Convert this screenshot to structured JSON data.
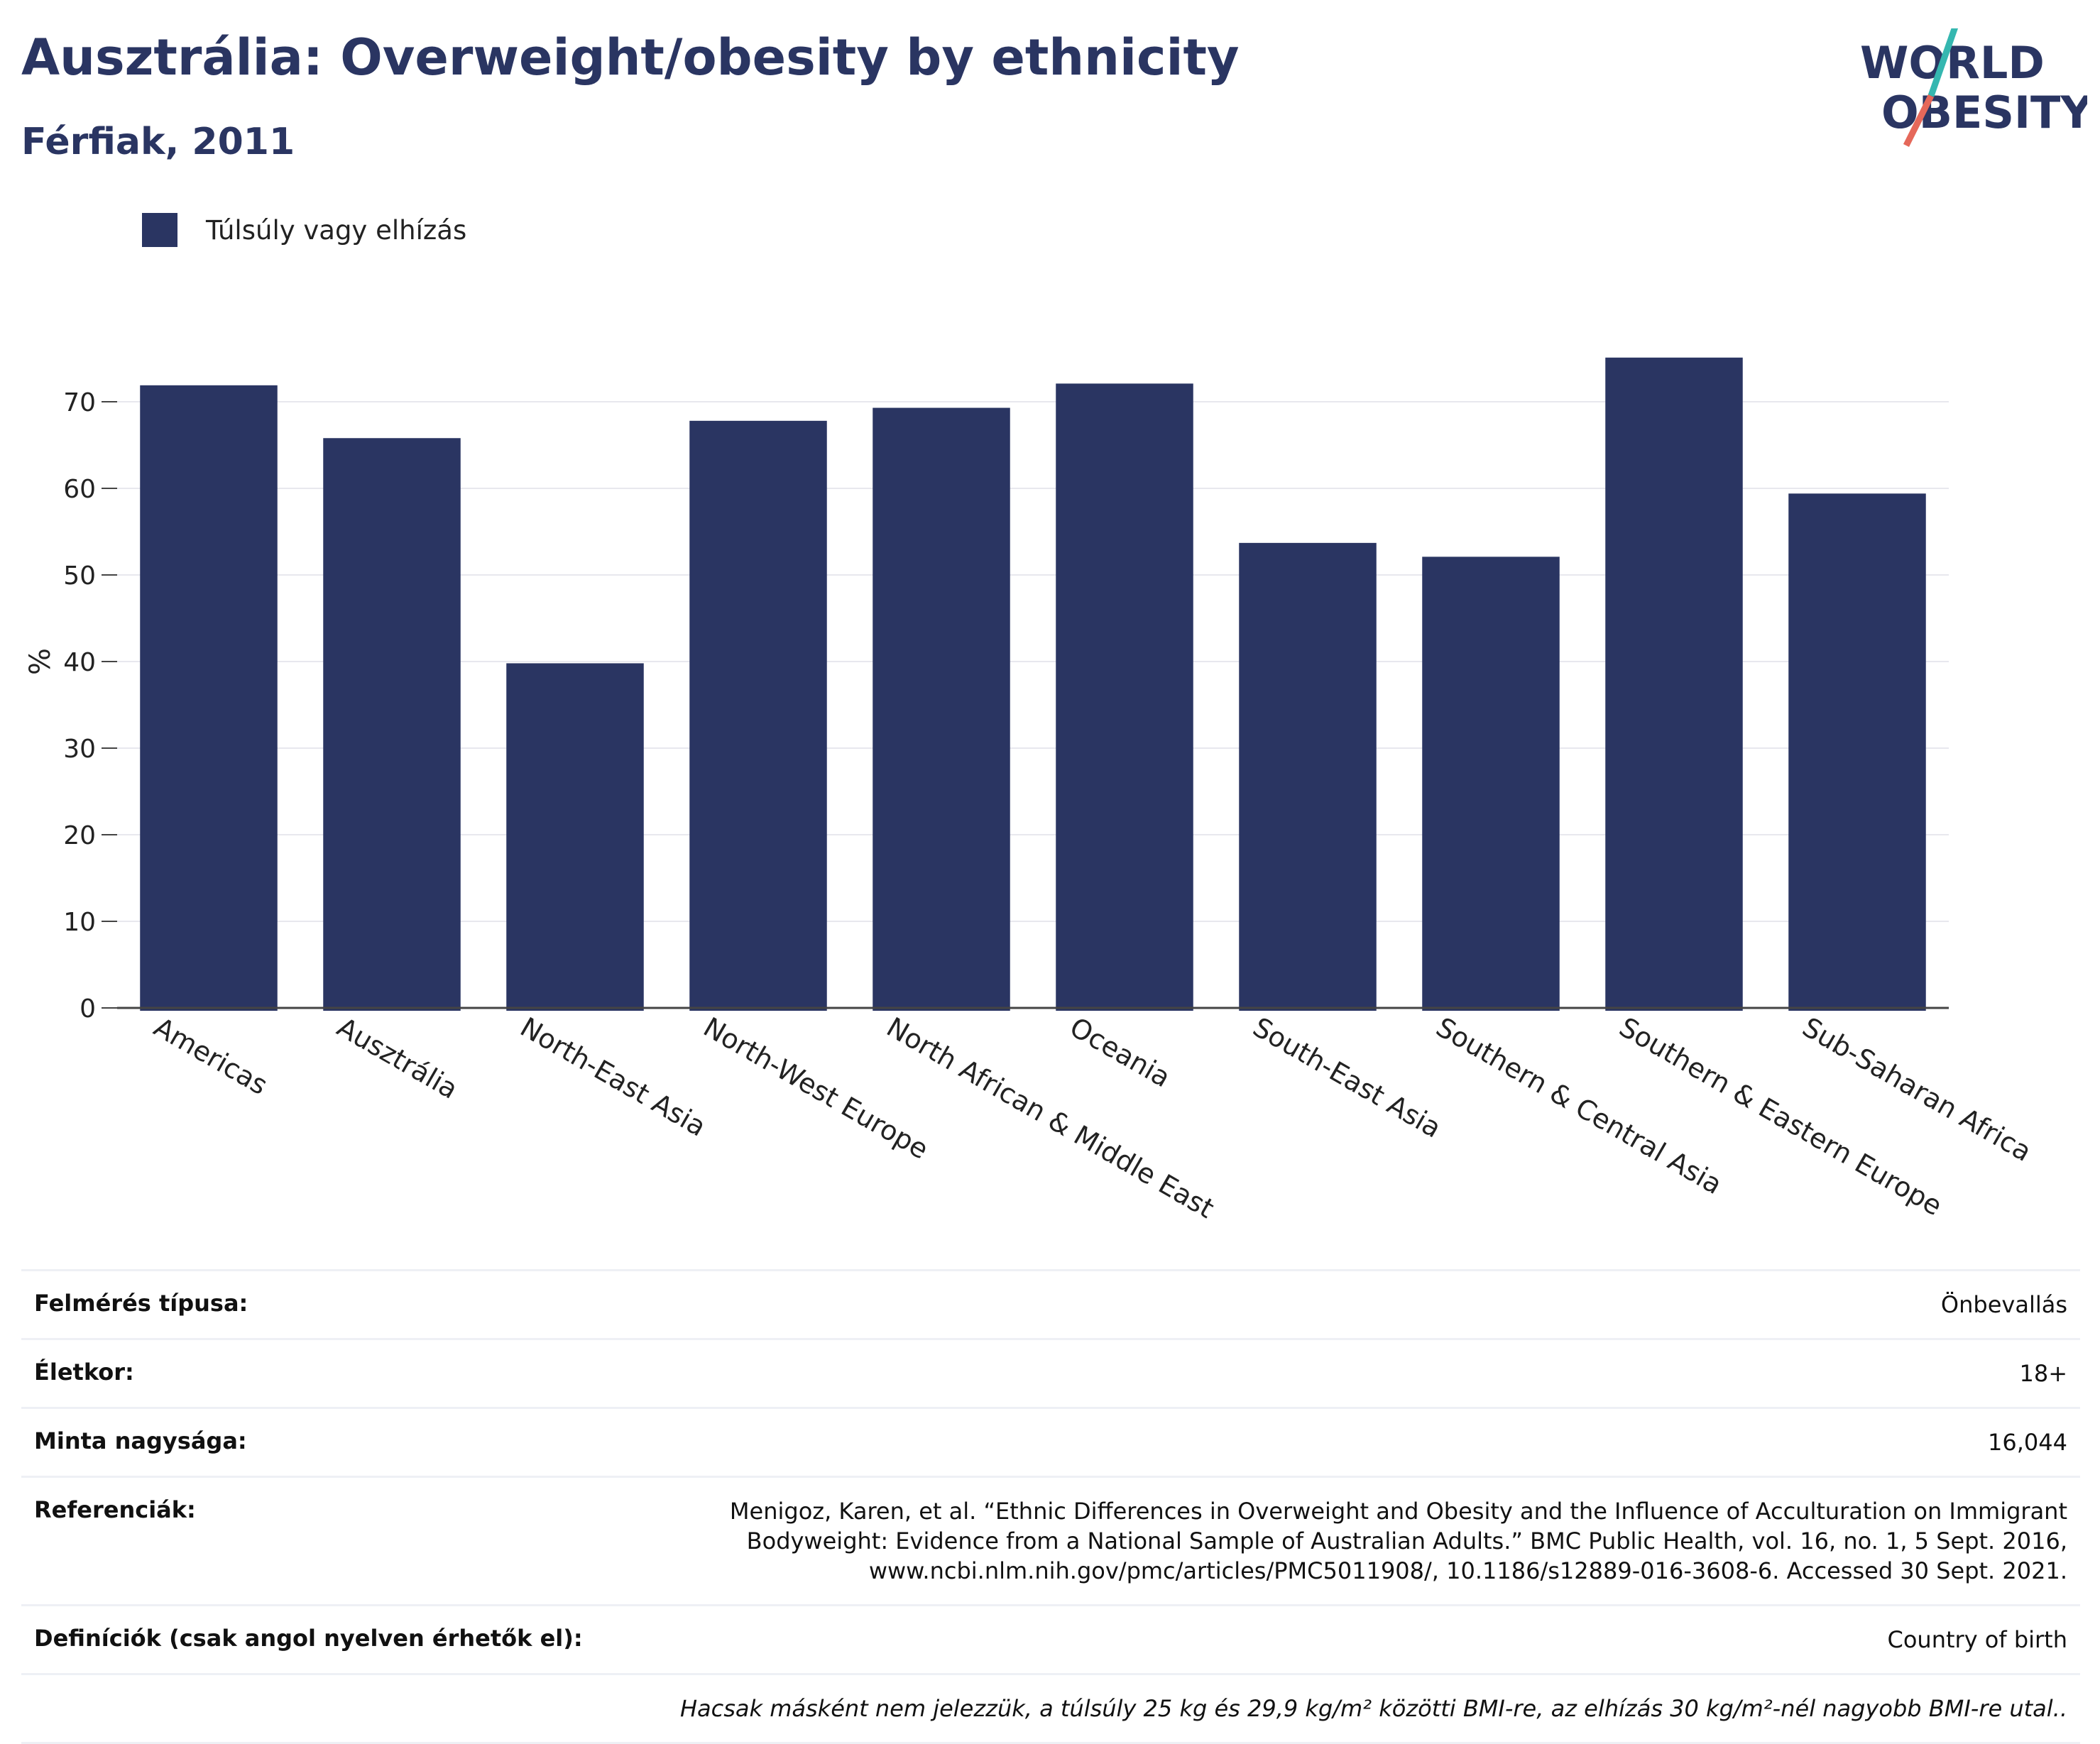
{
  "header": {
    "title": "Ausztrália: Overweight/obesity by ethnicity",
    "subtitle": "Férfiak, 2011"
  },
  "logo": {
    "line1": "WORLD",
    "line2": "OBESITY",
    "accent_teal": "#35b7b0",
    "accent_red": "#e5685a"
  },
  "legend": {
    "label": "Túlsúly vagy elhízás",
    "color": "#2a3562"
  },
  "chart_data": {
    "type": "bar",
    "categories": [
      "Americas",
      "Ausztrália",
      "North-East Asia",
      "North-West Europe",
      "North African & Middle East",
      "Oceania",
      "South-East Asia",
      "Southern & Central Asia",
      "Southern & Eastern Europe",
      "Sub-Saharan Africa"
    ],
    "series": [
      {
        "name": "Túlsúly vagy elhízás",
        "values": [
          71.9,
          65.8,
          39.8,
          67.8,
          69.3,
          72.1,
          53.7,
          52.1,
          75.1,
          59.4
        ]
      }
    ],
    "ylabel": "%",
    "ylim": [
      0,
      80
    ],
    "yticks": [
      0,
      10,
      20,
      30,
      40,
      50,
      60,
      70
    ],
    "grid": true,
    "bar_color": "#2a3562"
  },
  "info": {
    "rows": [
      {
        "key": "Felmérés típusa:",
        "value": "Önbevallás"
      },
      {
        "key": "Életkor:",
        "value": "18+"
      },
      {
        "key": "Minta nagysága:",
        "value": "16,044"
      },
      {
        "key": "Referenciák:",
        "value": "Menigoz, Karen, et al. “Ethnic Differences in Overweight and Obesity and the Influence of Acculturation on Immigrant Bodyweight: Evidence from a National Sample of Australian Adults.” BMC Public Health, vol. 16, no. 1, 5 Sept. 2016, www.ncbi.nlm.nih.gov/pmc/articles/PMC5011908/, 10.1186/s12889-016-3608-6. Accessed 30 Sept. 2021."
      },
      {
        "key": "Definíciók (csak angol nyelven érhetők el):",
        "value": "Country of birth"
      }
    ],
    "note": "Hacsak másként nem jelezzük, a túlsúly 25 kg és 29,9 kg/m² közötti BMI-re, az elhízás 30 kg/m²-nél nagyobb BMI-re utal.."
  }
}
